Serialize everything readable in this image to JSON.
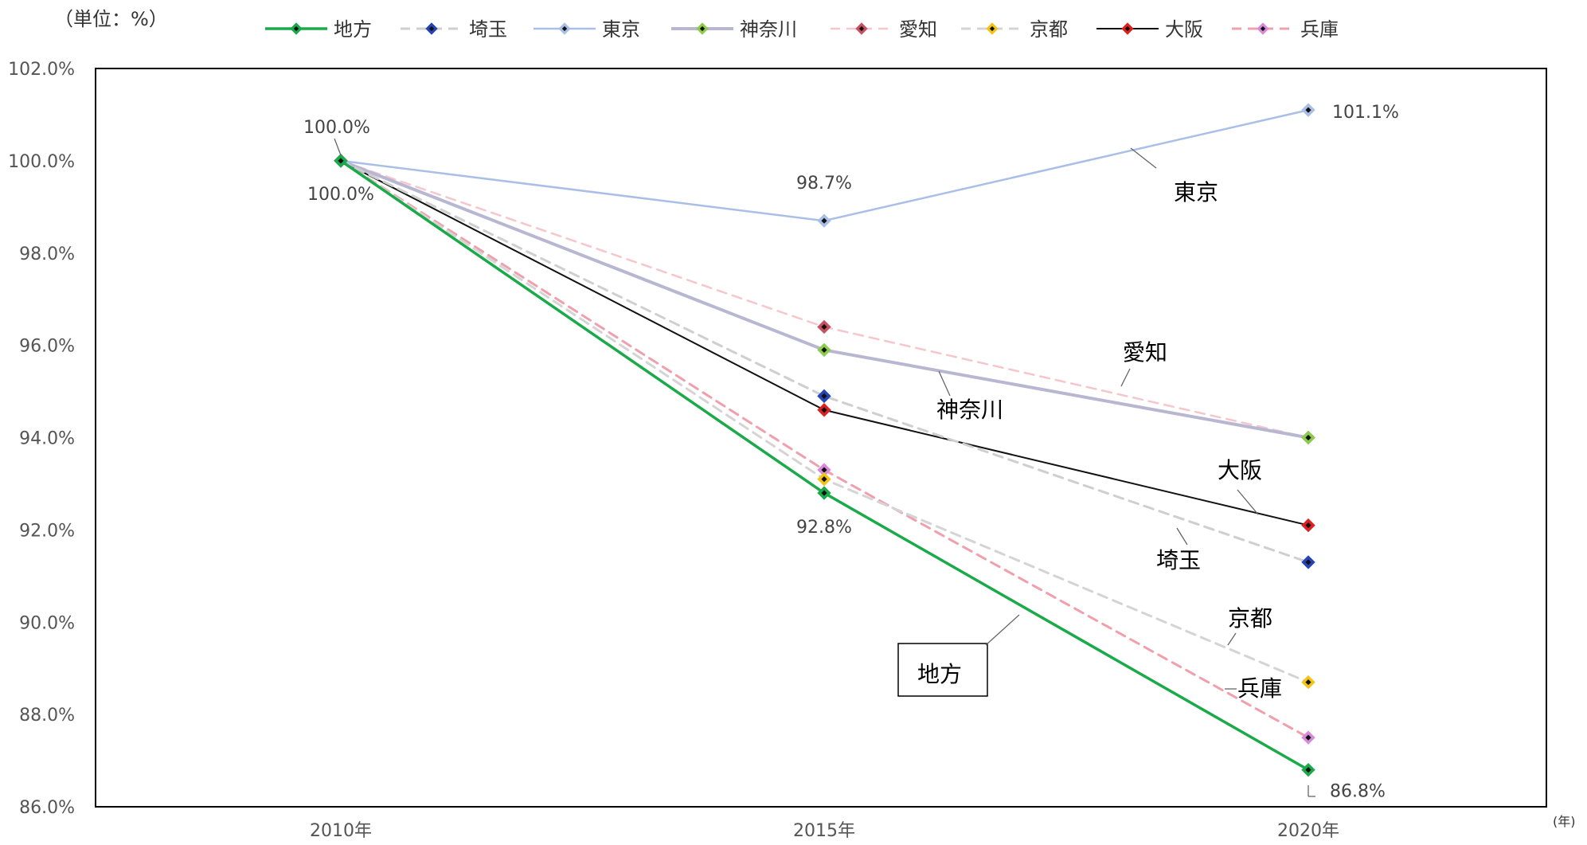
{
  "unit_label": "（単位：%）",
  "x_unit_label": "(年)",
  "chart_data": {
    "type": "line",
    "categories": [
      "2010年",
      "2015年",
      "2020年"
    ],
    "ylim": [
      86.0,
      102.0
    ],
    "y_ticks": [
      "86.0%",
      "88.0%",
      "90.0%",
      "92.0%",
      "94.0%",
      "96.0%",
      "98.0%",
      "100.0%",
      "102.0%"
    ],
    "grid": false,
    "legend_position": "top",
    "series": [
      {
        "name": "地方",
        "values": [
          100.0,
          92.8,
          86.8
        ],
        "color": "#1aaa4a",
        "dash": "solid",
        "marker_color": "#1aaa4a",
        "width": 3.5
      },
      {
        "name": "埼玉",
        "values": [
          100.0,
          94.9,
          91.3
        ],
        "color": "#cfcfcf",
        "dash": "dashed",
        "marker_color": "#2444b8",
        "width": 3
      },
      {
        "name": "東京",
        "values": [
          100.0,
          98.7,
          101.1
        ],
        "color": "#a9bfe8",
        "dash": "solid",
        "marker_color": "#a9bfe8",
        "width": 2.5
      },
      {
        "name": "神奈川",
        "values": [
          100.0,
          95.9,
          94.0
        ],
        "color": "#b9b6d2",
        "dash": "solid",
        "marker_color": "#8ccc4c",
        "width": 4
      },
      {
        "name": "愛知",
        "values": [
          100.0,
          96.4,
          94.0
        ],
        "color": "#f5c6cc",
        "dash": "dashed",
        "marker_color": "#c8505f",
        "width": 2.5
      },
      {
        "name": "京都",
        "values": [
          100.0,
          93.1,
          88.7
        ],
        "color": "#d4d4d4",
        "dash": "dashed",
        "marker_color": "#f2c418",
        "width": 3
      },
      {
        "name": "大阪",
        "values": [
          100.0,
          94.6,
          92.1
        ],
        "color": "#111111",
        "dash": "solid",
        "marker_color": "#dd2020",
        "width": 2
      },
      {
        "name": "兵庫",
        "values": [
          100.0,
          93.3,
          87.5
        ],
        "color": "#f0a0ac",
        "dash": "dashed",
        "marker_color": "#d68ad8",
        "width": 3
      }
    ],
    "data_labels": [
      "100.0%",
      "100.0%",
      "98.7%",
      "101.1%",
      "92.8%",
      "86.8%"
    ],
    "series_callouts": [
      "東京",
      "愛知",
      "神奈川",
      "大阪",
      "埼玉",
      "京都",
      "兵庫",
      "地方"
    ]
  }
}
